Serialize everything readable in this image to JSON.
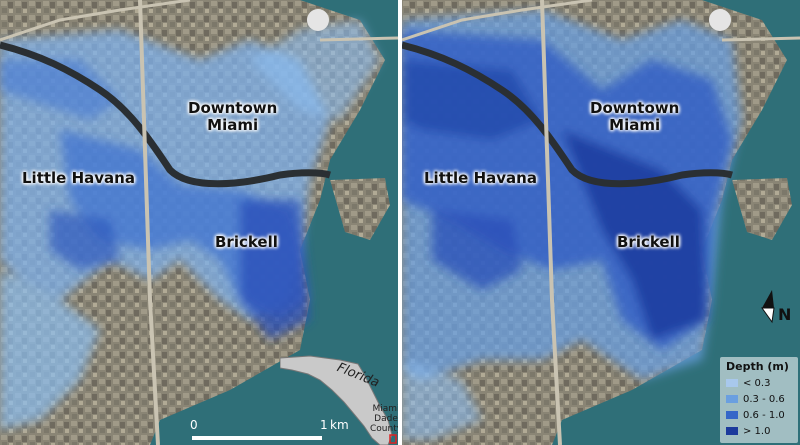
{
  "panels": [
    {
      "id": "left",
      "labels": {
        "downtown": "Downtown\nMiami",
        "little_havana": "Little Havana",
        "brickell": "Brickell"
      }
    },
    {
      "id": "right",
      "labels": {
        "downtown": "Downtown\nMiami",
        "little_havana": "Little Havana",
        "brickell": "Brickell"
      }
    }
  ],
  "scale_bar": {
    "start": "0",
    "end": "1",
    "unit": "km"
  },
  "inset": {
    "state": "Florida",
    "county": "Miami\nDade\nCounty"
  },
  "north_arrow": {
    "label": "N"
  },
  "legend": {
    "title": "Depth (m)",
    "items": [
      {
        "label": "< 0.3",
        "color": "#a8c8ec"
      },
      {
        "label": "0.3 - 0.6",
        "color": "#6a9fe0"
      },
      {
        "label": "0.6 - 1.0",
        "color": "#3566c8"
      },
      {
        "label": "> 1.0",
        "color": "#1c3a9c"
      }
    ]
  },
  "colors": {
    "water": "#2f6f78",
    "bay": "#3f7a82",
    "land": "#8b8676",
    "river": "#2a2f33"
  }
}
